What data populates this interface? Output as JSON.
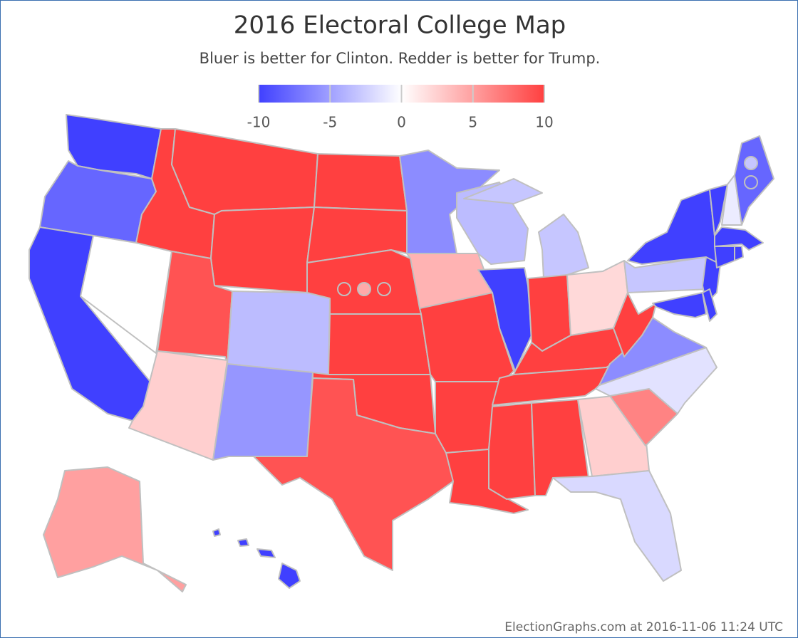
{
  "map": {
    "title": "2016 Electoral College Map",
    "subtitle": "Bluer is better for Clinton. Redder is better for Trump.",
    "footer": "ElectionGraphs.com at 2016-11-06 11:24 UTC",
    "color_scale": {
      "lim": [
        -10,
        10
      ],
      "ticks": [
        -10,
        -5,
        0,
        5,
        10
      ]
    },
    "values": [
      -10,
      -8,
      -10,
      0,
      10,
      10,
      10,
      9,
      2.5,
      -3.5,
      -5.5,
      10,
      10,
      10,
      10,
      10,
      9,
      -6,
      4,
      10,
      10,
      10,
      -3.5,
      -10,
      -3,
      10,
      2,
      10,
      10,
      10,
      10,
      2.5,
      -2,
      6.5,
      -1.5,
      -6,
      10,
      -3,
      -10,
      -10,
      -10,
      -10,
      -10,
      -1,
      -8,
      -10,
      -10,
      -10,
      5,
      -10
    ],
    "district_values": [
      10,
      4.5,
      10,
      -3,
      -8
    ]
  }
}
